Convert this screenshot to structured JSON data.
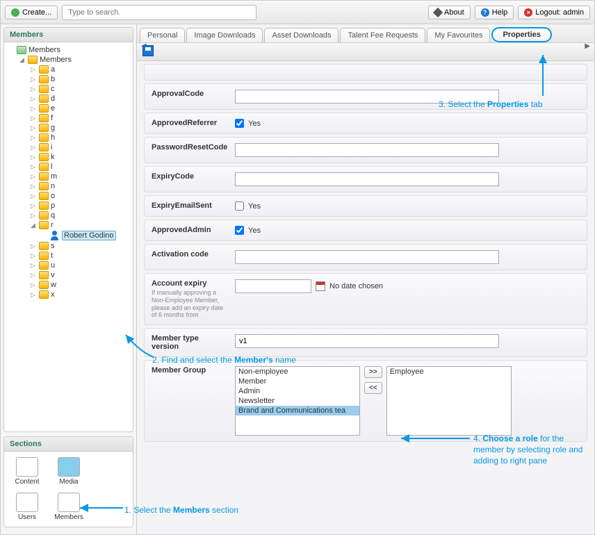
{
  "topbar": {
    "create_label": "Create...",
    "search_placeholder": "Type to search.",
    "about_label": "About",
    "help_label": "Help",
    "logout_label": "Logout: admin"
  },
  "sidebar": {
    "members_header": "Members",
    "root_label": "Members",
    "group_label": "Members",
    "folders": [
      "a",
      "b",
      "c",
      "d",
      "e",
      "f",
      "g",
      "h",
      "i",
      "k",
      "l",
      "m",
      "n",
      "o",
      "p",
      "q",
      "r",
      "s",
      "t",
      "u",
      "v",
      "w",
      "x"
    ],
    "expanded_folder": "r",
    "selected_member": "Robert Godino",
    "sections_header": "Sections",
    "sections": [
      "Content",
      "Media",
      "Users",
      "Members"
    ]
  },
  "tabs": [
    "Personal",
    "Image Downloads",
    "Asset Downloads",
    "Talent Fee Requests",
    "My Favourites",
    "Properties"
  ],
  "form": {
    "approval_code": {
      "label": "ApprovalCode",
      "value": ""
    },
    "approved_referrer": {
      "label": "ApprovedReferrer",
      "text": "Yes",
      "checked": true
    },
    "password_reset": {
      "label": "PasswordResetCode",
      "value": ""
    },
    "expiry_code": {
      "label": "ExpiryCode",
      "value": ""
    },
    "expiry_email_sent": {
      "label": "ExpiryEmailSent",
      "text": "Yes",
      "checked": false
    },
    "approved_admin": {
      "label": "ApprovedAdmin",
      "text": "Yes",
      "checked": true
    },
    "activation_code": {
      "label": "Activation code",
      "value": ""
    },
    "account_expiry": {
      "label": "Account expiry",
      "help": "If manually approving a Non-Employee Member, please add an expiry date of 6 months from",
      "no_date": "No date chosen"
    },
    "member_type_version": {
      "label": "Member type version",
      "value": "v1"
    },
    "member_group": {
      "label": "Member Group",
      "available": [
        "Non-employee",
        "Member",
        "Admin",
        "Newsletter",
        "Brand and Communications tea"
      ],
      "selected_available": "Brand and Communications tea",
      "assigned": [
        "Employee"
      ],
      "btn_add": ">>",
      "btn_remove": "<<"
    }
  },
  "annotations": {
    "step1": "1. Select the <b>Members</b> section",
    "step2": "2. Find and select the <b>Member's</b> name",
    "step3": "3. Select the <b>Properties</b> tab",
    "step4": "4. <b>Choose a role</b> for the member by selecting role and adding to right pane"
  },
  "colors": {
    "annotation": "#0099e5",
    "panel_header": "#2a7a5a",
    "folder": "#ffb300",
    "selected_bg": "#cfe8f5"
  }
}
